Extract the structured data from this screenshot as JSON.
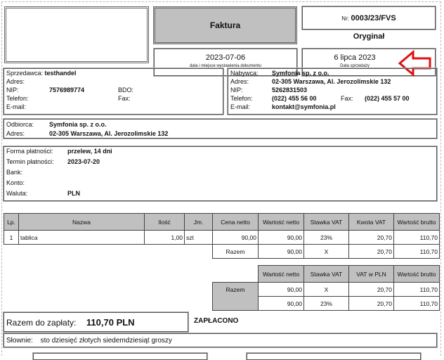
{
  "header": {
    "title": "Faktura",
    "nr_label": "Nr:",
    "nr_value": "0003/23/FVS",
    "copy": "Oryginał",
    "issue_date": "2023-07-06",
    "issue_caption": "data i miejsce wystawienia dokumentu",
    "sale_date": "6 lipca 2023",
    "sale_caption": "Data sprzedaży",
    "arrow_color": "#e01010"
  },
  "seller": {
    "label": "Sprzedawca:",
    "name": "testhandel",
    "address_label": "Adres:",
    "nip_label": "NIP:",
    "nip": "7576989774",
    "bdo_label": "BDO:",
    "phone_label": "Telefon:",
    "fax_label": "Fax:",
    "email_label": "E-mail:"
  },
  "buyer": {
    "label": "Nabywca:",
    "name": "Symfonia sp. z o.o.",
    "address_label": "Adres:",
    "address": "02-305 Warszawa, Al. Jerozolimskie 132",
    "nip_label": "NIP:",
    "nip": "5262831503",
    "phone_label": "Telefon:",
    "phone": "(022) 455 56 00",
    "fax_label": "Fax:",
    "fax": "(022) 455 57 00",
    "email_label": "E-mail:",
    "email": "kontakt@symfonia.pl"
  },
  "recipient": {
    "label": "Odbiorca:",
    "name": "Symfonia sp. z o.o.",
    "address_label": "Adres:",
    "address": "02-305 Warszawa, Al. Jerozolimskie 132"
  },
  "payment": {
    "method_label": "Forma płatności:",
    "method": "przelew, 14 dni",
    "due_label": "Termin płatności:",
    "due": "2023-07-20",
    "bank_label": "Bank:",
    "account_label": "Konto:",
    "currency_label": "Waluta:",
    "currency": "PLN"
  },
  "items_table": {
    "headers": [
      "Lp.",
      "Nazwa",
      "Ilość",
      "Jm.",
      "Cena netto",
      "Wartość netto",
      "Stawka VAT",
      "Kwota VAT",
      "Wartość brutto"
    ],
    "rows": [
      [
        "1",
        "tablica",
        "1,00",
        "szt",
        "90,00",
        "90,00",
        "23%",
        "20,70",
        "110,70"
      ]
    ],
    "total": {
      "label": "Razem",
      "net": "90,00",
      "rate": "X",
      "vat": "20,70",
      "gross": "110,70"
    }
  },
  "vat_table": {
    "headers": [
      "Wartość netto",
      "Stawka VAT",
      "VAT w PLN",
      "Wartość brutto"
    ],
    "label": "Razem",
    "rows": [
      [
        "90,00",
        "X",
        "20,70",
        "110,70"
      ],
      [
        "90,00",
        "23%",
        "20,70",
        "110,70"
      ]
    ]
  },
  "summary": {
    "label": "Razem do zapłaty:",
    "value": "110,70 PLN",
    "status": "ZAPŁACONO",
    "words_label": "Słownie:",
    "words": "sto dziesięć złotych siedemdziesiąt groszy"
  }
}
